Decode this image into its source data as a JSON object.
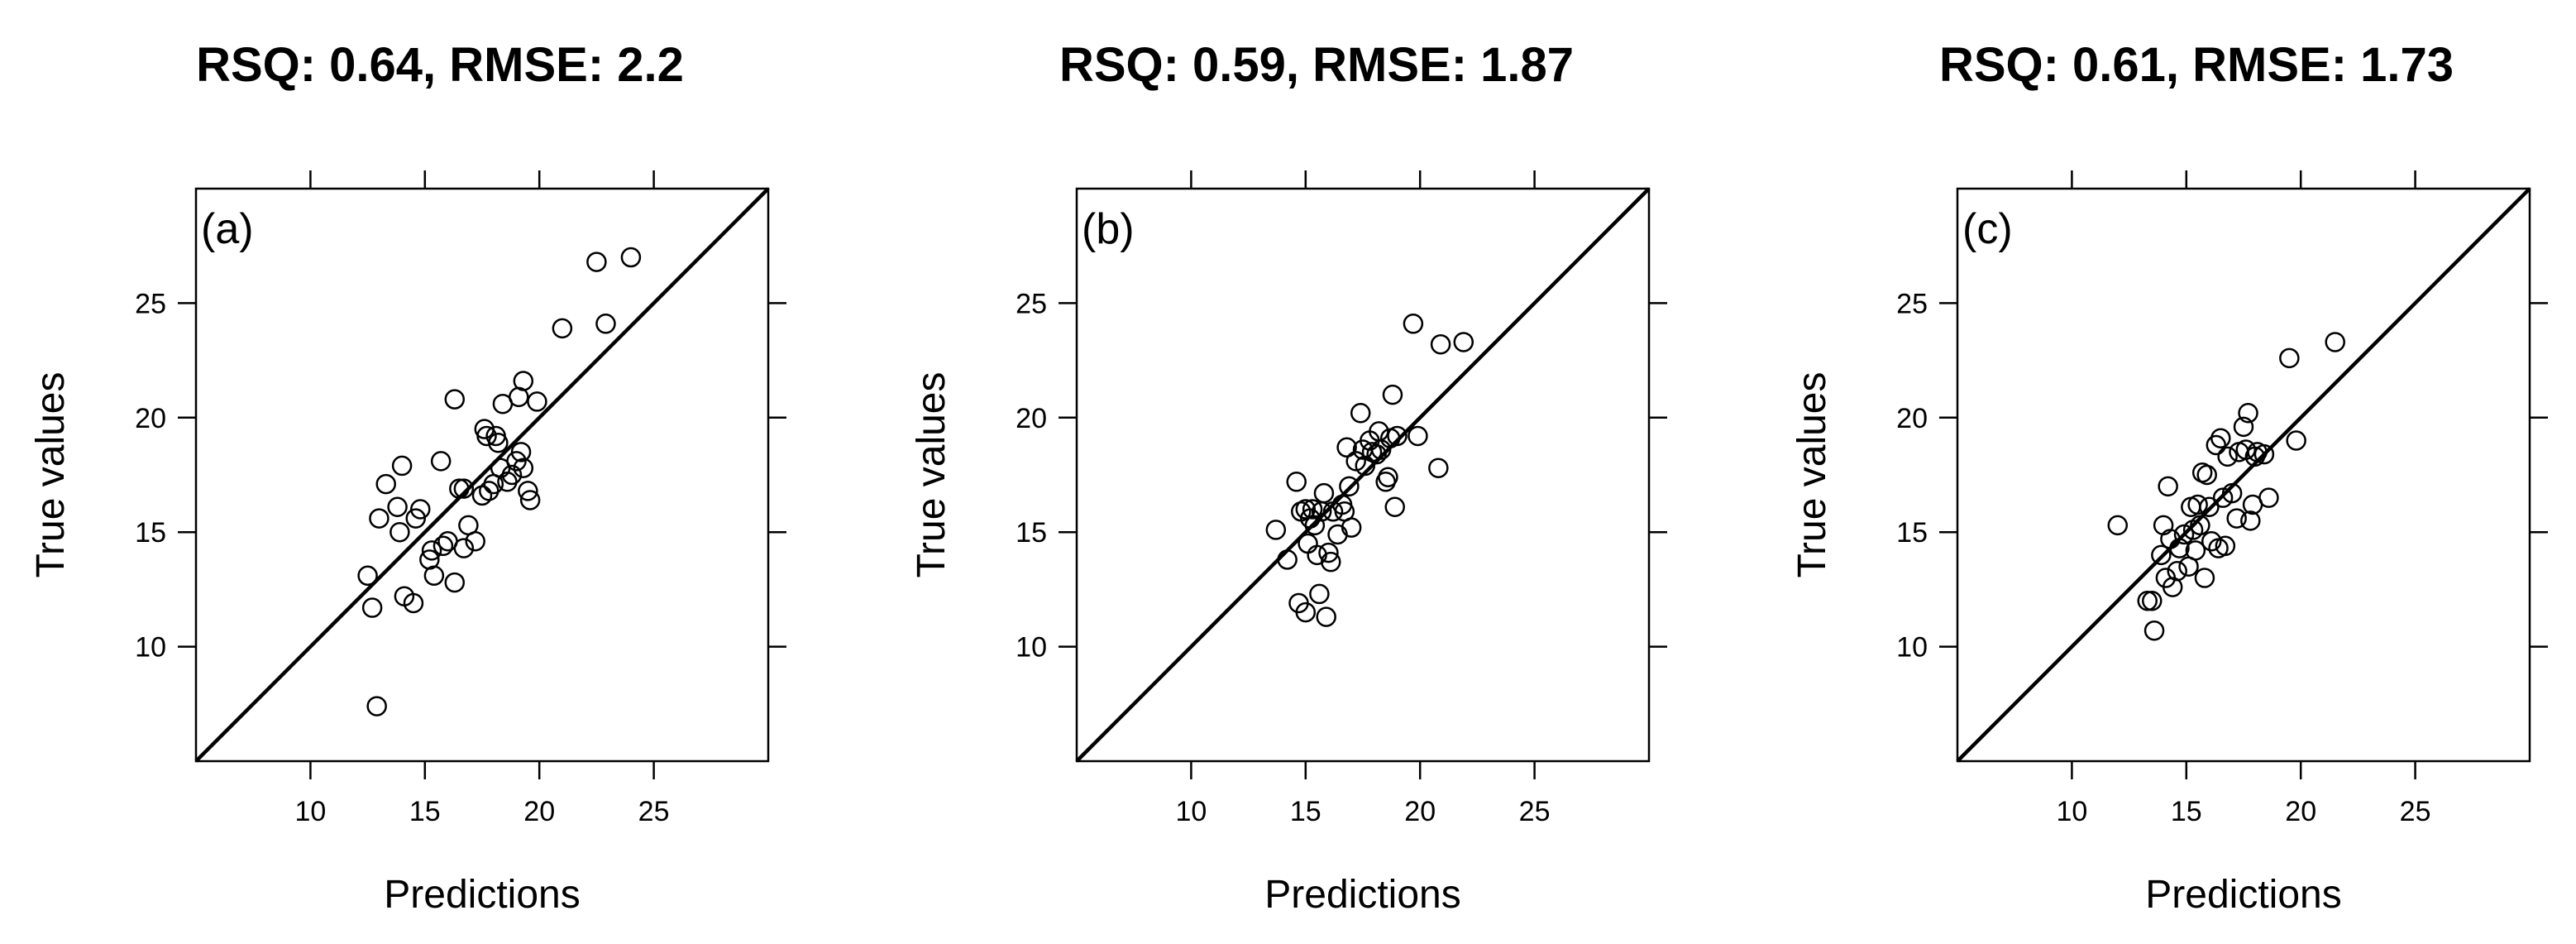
{
  "chart_data": [
    {
      "type": "scatter",
      "title": "RSQ: 0.64, RMSE: 2.2",
      "panel_label": "(a)",
      "xlabel": "Predictions",
      "ylabel": "True values",
      "xlim": [
        5,
        30
      ],
      "ylim": [
        5,
        30
      ],
      "xticks": [
        10,
        15,
        20,
        25
      ],
      "yticks": [
        10,
        15,
        20,
        25
      ],
      "reference_line": "y = x",
      "grid": false,
      "marker": "open-circle",
      "points": [
        [
          12.5,
          13.1
        ],
        [
          12.7,
          11.7
        ],
        [
          12.9,
          7.4
        ],
        [
          13.0,
          15.6
        ],
        [
          13.3,
          17.1
        ],
        [
          13.8,
          16.1
        ],
        [
          13.9,
          15.0
        ],
        [
          14.0,
          17.9
        ],
        [
          14.1,
          12.2
        ],
        [
          14.5,
          11.9
        ],
        [
          14.6,
          15.6
        ],
        [
          14.8,
          16.0
        ],
        [
          15.2,
          13.8
        ],
        [
          15.3,
          14.2
        ],
        [
          15.4,
          13.1
        ],
        [
          15.7,
          18.1
        ],
        [
          15.8,
          14.4
        ],
        [
          16.0,
          14.6
        ],
        [
          16.3,
          20.8
        ],
        [
          16.3,
          12.8
        ],
        [
          16.5,
          16.9
        ],
        [
          16.7,
          16.9
        ],
        [
          16.7,
          14.3
        ],
        [
          16.9,
          15.3
        ],
        [
          17.2,
          14.6
        ],
        [
          17.5,
          16.6
        ],
        [
          17.6,
          19.5
        ],
        [
          17.7,
          19.2
        ],
        [
          17.8,
          16.8
        ],
        [
          18.0,
          17.1
        ],
        [
          18.1,
          19.2
        ],
        [
          18.2,
          18.9
        ],
        [
          18.3,
          17.8
        ],
        [
          18.4,
          20.6
        ],
        [
          18.6,
          17.2
        ],
        [
          18.8,
          17.5
        ],
        [
          19.0,
          18.1
        ],
        [
          19.1,
          20.9
        ],
        [
          19.2,
          18.5
        ],
        [
          19.3,
          21.6
        ],
        [
          19.3,
          17.8
        ],
        [
          19.5,
          16.8
        ],
        [
          19.6,
          16.4
        ],
        [
          19.9,
          20.7
        ],
        [
          21.0,
          23.9
        ],
        [
          22.5,
          26.8
        ],
        [
          22.9,
          24.1
        ],
        [
          24.0,
          27.0
        ]
      ]
    },
    {
      "type": "scatter",
      "title": "RSQ: 0.59, RMSE: 1.87",
      "panel_label": "(b)",
      "xlabel": "Predictions",
      "ylabel": "True values",
      "xlim": [
        5,
        30
      ],
      "ylim": [
        5,
        30
      ],
      "xticks": [
        10,
        15,
        20,
        25
      ],
      "yticks": [
        10,
        15,
        20,
        25
      ],
      "reference_line": "y = x",
      "grid": false,
      "marker": "open-circle",
      "points": [
        [
          13.7,
          15.1
        ],
        [
          14.2,
          13.8
        ],
        [
          14.6,
          17.2
        ],
        [
          14.7,
          11.9
        ],
        [
          14.8,
          15.9
        ],
        [
          15.0,
          16.0
        ],
        [
          15.0,
          11.5
        ],
        [
          15.1,
          14.5
        ],
        [
          15.2,
          15.6
        ],
        [
          15.3,
          16.0
        ],
        [
          15.4,
          15.3
        ],
        [
          15.5,
          14.0
        ],
        [
          15.6,
          12.3
        ],
        [
          15.7,
          15.9
        ],
        [
          15.8,
          16.7
        ],
        [
          15.9,
          11.3
        ],
        [
          16.0,
          14.1
        ],
        [
          16.1,
          13.7
        ],
        [
          16.2,
          15.9
        ],
        [
          16.4,
          14.9
        ],
        [
          16.6,
          16.2
        ],
        [
          16.7,
          15.9
        ],
        [
          16.8,
          18.7
        ],
        [
          16.9,
          17.0
        ],
        [
          17.0,
          15.2
        ],
        [
          17.2,
          18.1
        ],
        [
          17.4,
          20.2
        ],
        [
          17.5,
          18.6
        ],
        [
          17.6,
          17.9
        ],
        [
          17.8,
          19.0
        ],
        [
          17.9,
          18.5
        ],
        [
          18.1,
          18.4
        ],
        [
          18.2,
          19.4
        ],
        [
          18.3,
          18.6
        ],
        [
          18.5,
          17.2
        ],
        [
          18.6,
          17.4
        ],
        [
          18.7,
          19.1
        ],
        [
          18.8,
          21.0
        ],
        [
          18.9,
          16.1
        ],
        [
          19.0,
          19.2
        ],
        [
          19.7,
          24.1
        ],
        [
          19.9,
          19.2
        ],
        [
          20.8,
          17.8
        ],
        [
          20.9,
          23.2
        ],
        [
          21.9,
          23.3
        ]
      ]
    },
    {
      "type": "scatter",
      "title": "RSQ: 0.61, RMSE: 1.73",
      "panel_label": "(c)",
      "xlabel": "Predictions",
      "ylabel": "True values",
      "xlim": [
        5,
        30
      ],
      "ylim": [
        5,
        30
      ],
      "xticks": [
        10,
        15,
        20,
        25
      ],
      "yticks": [
        10,
        15,
        20,
        25
      ],
      "reference_line": "y = x",
      "grid": false,
      "marker": "open-circle",
      "points": [
        [
          12.0,
          15.3
        ],
        [
          13.3,
          12.0
        ],
        [
          13.5,
          12.0
        ],
        [
          13.6,
          10.7
        ],
        [
          13.9,
          14.0
        ],
        [
          14.0,
          15.3
        ],
        [
          14.1,
          13.0
        ],
        [
          14.2,
          17.0
        ],
        [
          14.3,
          14.7
        ],
        [
          14.4,
          12.6
        ],
        [
          14.6,
          13.3
        ],
        [
          14.7,
          14.3
        ],
        [
          14.9,
          14.9
        ],
        [
          15.1,
          13.5
        ],
        [
          15.2,
          16.1
        ],
        [
          15.3,
          15.1
        ],
        [
          15.4,
          14.2
        ],
        [
          15.5,
          16.2
        ],
        [
          15.6,
          15.3
        ],
        [
          15.7,
          17.6
        ],
        [
          15.8,
          13.0
        ],
        [
          15.9,
          17.5
        ],
        [
          16.0,
          16.1
        ],
        [
          16.1,
          14.6
        ],
        [
          16.3,
          18.8
        ],
        [
          16.4,
          14.3
        ],
        [
          16.5,
          19.1
        ],
        [
          16.6,
          16.5
        ],
        [
          16.7,
          14.4
        ],
        [
          16.8,
          18.3
        ],
        [
          17.0,
          16.7
        ],
        [
          17.2,
          15.6
        ],
        [
          17.3,
          18.5
        ],
        [
          17.5,
          19.6
        ],
        [
          17.6,
          18.6
        ],
        [
          17.7,
          20.2
        ],
        [
          17.8,
          15.5
        ],
        [
          17.9,
          16.2
        ],
        [
          18.0,
          18.3
        ],
        [
          18.1,
          18.5
        ],
        [
          18.4,
          18.4
        ],
        [
          18.6,
          16.5
        ],
        [
          19.5,
          22.6
        ],
        [
          19.8,
          19.0
        ],
        [
          21.5,
          23.3
        ]
      ]
    }
  ]
}
